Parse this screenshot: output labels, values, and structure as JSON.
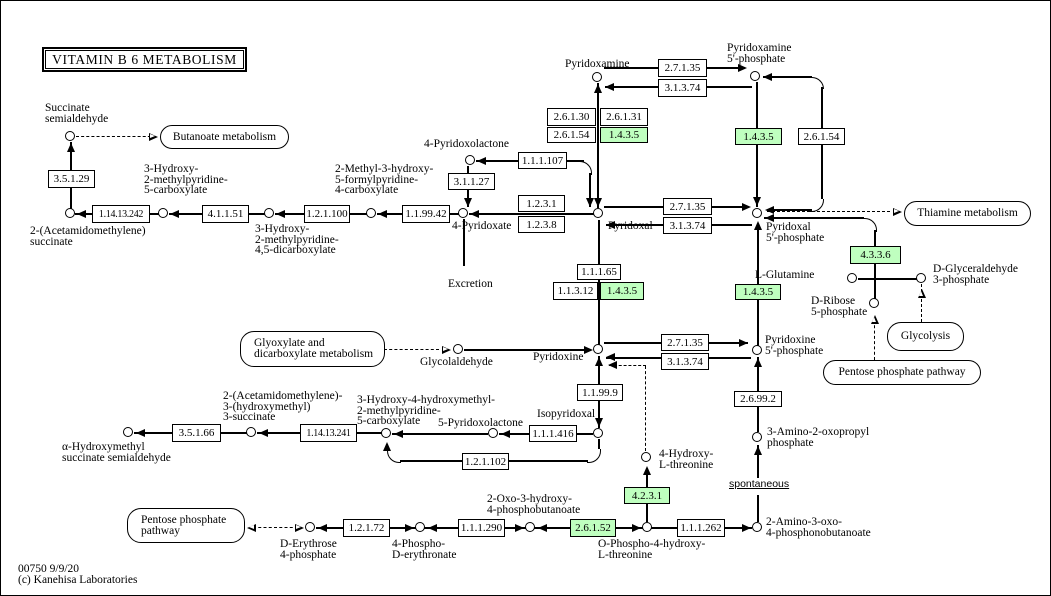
{
  "title": "VITAMIN  B 6  METABOLISM",
  "footer": {
    "map_id": "00750 9/9/20",
    "copyright": "(c) Kanehisa Laboratories"
  },
  "colors": {
    "highlight_green": "#BFFFBF",
    "line": "#000000",
    "background": "#FFFFFF"
  },
  "annotations": {
    "spontaneous": "spontaneous",
    "excretion": "Excretion"
  },
  "enzymes": [
    {
      "ec": "3.5.1.29",
      "highlighted": false
    },
    {
      "ec": "1.14.13.242",
      "highlighted": false
    },
    {
      "ec": "4.1.1.51",
      "highlighted": false
    },
    {
      "ec": "1.2.1.100",
      "highlighted": false
    },
    {
      "ec": "1.1.99.42",
      "highlighted": false
    },
    {
      "ec": "1.1.1.107",
      "highlighted": false
    },
    {
      "ec": "3.1.1.27",
      "highlighted": false
    },
    {
      "ec": "1.2.3.1",
      "highlighted": false
    },
    {
      "ec": "1.2.3.8",
      "highlighted": false
    },
    {
      "ec": "2.7.1.35",
      "highlighted": false
    },
    {
      "ec": "3.1.3.74",
      "highlighted": false
    },
    {
      "ec": "2.6.1.30",
      "highlighted": false
    },
    {
      "ec": "2.6.1.31",
      "highlighted": false
    },
    {
      "ec": "2.6.1.54",
      "highlighted": false
    },
    {
      "ec": "1.4.3.5",
      "highlighted": true
    },
    {
      "ec": "1.4.3.5",
      "highlighted": true
    },
    {
      "ec": "2.6.1.54",
      "highlighted": false
    },
    {
      "ec": "2.7.1.35",
      "highlighted": false
    },
    {
      "ec": "3.1.3.74",
      "highlighted": false
    },
    {
      "ec": "1.1.1.65",
      "highlighted": false
    },
    {
      "ec": "1.1.3.12",
      "highlighted": false
    },
    {
      "ec": "1.4.3.5",
      "highlighted": true
    },
    {
      "ec": "1.4.3.5",
      "highlighted": true
    },
    {
      "ec": "4.3.3.6",
      "highlighted": true
    },
    {
      "ec": "2.7.1.35",
      "highlighted": false
    },
    {
      "ec": "3.1.3.74",
      "highlighted": false
    },
    {
      "ec": "1.1.99.9",
      "highlighted": false
    },
    {
      "ec": "2.6.99.2",
      "highlighted": false
    },
    {
      "ec": "1.1.1.416",
      "highlighted": false
    },
    {
      "ec": "1.2.1.102",
      "highlighted": false
    },
    {
      "ec": "3.5.1.66",
      "highlighted": false
    },
    {
      "ec": "1.14.13.241",
      "highlighted": false
    },
    {
      "ec": "1.2.1.72",
      "highlighted": false
    },
    {
      "ec": "1.1.1.290",
      "highlighted": false
    },
    {
      "ec": "2.6.1.52",
      "highlighted": true
    },
    {
      "ec": "1.1.1.262",
      "highlighted": false
    },
    {
      "ec": "4.2.3.1",
      "highlighted": true
    }
  ],
  "compounds": [
    {
      "name": "Succinate\nsemialdehyde"
    },
    {
      "name": "2-(Acetamidomethylene)\nsuccinate"
    },
    {
      "name": "3-Hydroxy-\n2-methylpyridine-\n5-carboxylate"
    },
    {
      "name": "3-Hydroxy-\n2-methylpyridine-\n4,5-dicarboxylate"
    },
    {
      "name": "2-Methyl-3-hydroxy-\n5-formylpyridine-\n4-carboxylate"
    },
    {
      "name": "4-Pyridoxate"
    },
    {
      "name": "4-Pyridoxolactone"
    },
    {
      "name": "Pyridoxal"
    },
    {
      "name": "Pyridoxamine"
    },
    {
      "name": "Pyridoxamine\n5'-phosphate"
    },
    {
      "name": "Pyridoxal\n5'-phosphate"
    },
    {
      "name": "L-Glutamine"
    },
    {
      "name": "D-Glyceraldehyde\n3-phosphate"
    },
    {
      "name": "D-Ribose\n5-phosphate"
    },
    {
      "name": "Glycolaldehyde"
    },
    {
      "name": "Pyridoxine"
    },
    {
      "name": "Pyridoxine\n5'-phosphate"
    },
    {
      "name": "3-Amino-2-oxopropyl\nphosphate"
    },
    {
      "name": "4-Hydroxy-\nL-threonine"
    },
    {
      "name": "Isopyridoxal"
    },
    {
      "name": "5-Pyridoxolactone"
    },
    {
      "name": "3-Hydroxy-4-hydroxymethyl-\n2-methylpyridine-\n5-carboxylate"
    },
    {
      "name": "2-(Acetamidomethylene)-\n3-(hydroxymethyl)\n3-succinate"
    },
    {
      "name": "α-Hydroxymethyl\nsuccinate semialdehyde"
    },
    {
      "name": "D-Erythrose\n4-phosphate"
    },
    {
      "name": "4-Phospho-\nD-erythronate"
    },
    {
      "name": "2-Oxo-3-hydroxy-\n4-phosphobutanoate"
    },
    {
      "name": "O-Phospho-4-hydroxy-\nL-threonine"
    },
    {
      "name": "2-Amino-3-oxo-\n4-phosphonobutanoate"
    }
  ],
  "pathway_maps": [
    {
      "name": "Butanoate metabolism"
    },
    {
      "name": "Thiamine metabolism"
    },
    {
      "name": "Glycolysis"
    },
    {
      "name": "Pentose phosphate pathway"
    },
    {
      "name": "Glyoxylate and\ndicarboxylate metabolism"
    },
    {
      "name": "Pentose phosphate\npathway"
    }
  ]
}
